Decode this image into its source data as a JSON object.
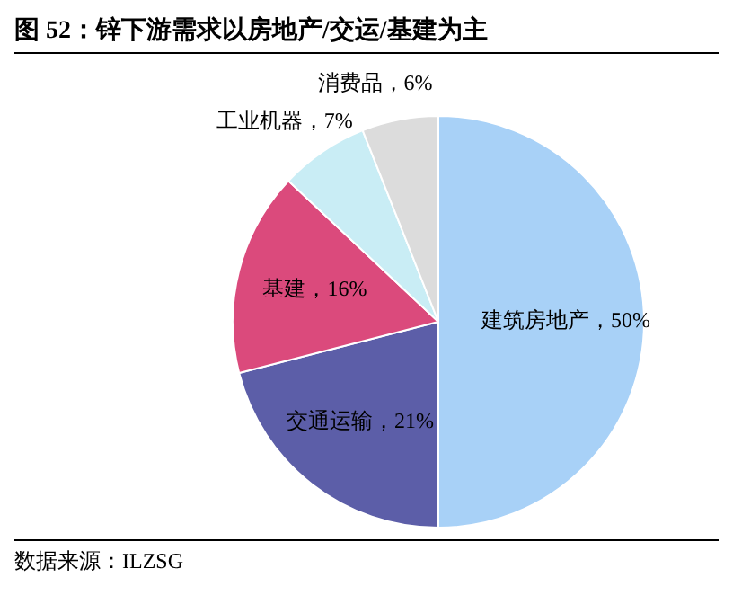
{
  "chart_data": {
    "type": "pie",
    "title": "图 52：锌下游需求以房地产/交运/基建为主",
    "categories": [
      "建筑房地产",
      "交通运输",
      "基建",
      "工业机器",
      "消费品"
    ],
    "values": [
      50,
      21,
      16,
      7,
      6
    ],
    "value_labels": [
      "50%",
      "21%",
      "16%",
      "7%",
      "6%"
    ],
    "colors": [
      "#a8d1f7",
      "#5c5ea8",
      "#db4a7c",
      "#c9edf5",
      "#dcdcdc"
    ],
    "legend": false,
    "annotations": [
      "数据来源：ILZSG"
    ]
  }
}
